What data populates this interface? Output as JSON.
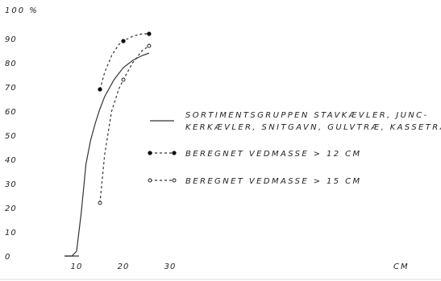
{
  "chart_data": {
    "type": "line",
    "title": "",
    "xlabel": "CM",
    "ylabel": "100 %",
    "xlim": [
      4,
      60
    ],
    "ylim": [
      0,
      100
    ],
    "x_ticks": [
      "10",
      "20",
      "30"
    ],
    "y_ticks": [
      "0",
      "10",
      "20",
      "30",
      "40",
      "50",
      "60",
      "70",
      "80",
      "90"
    ],
    "grid": false,
    "legend_position": "right",
    "series": [
      {
        "style": "solid",
        "name_lines": [
          "SORTIMENTSGRUPPEN STAVKÆVLER, JUNC-",
          "KERKÆVLER, SNITGAVN, GULVTRÆ, KASSETRÆ"
        ],
        "x": [
          7.5,
          9,
          10,
          11,
          12,
          13,
          14,
          15,
          16,
          18,
          20,
          22,
          24,
          25.5
        ],
        "y": [
          0,
          0,
          2,
          18,
          38,
          48,
          55,
          61,
          66,
          73,
          78,
          81,
          83,
          84
        ]
      },
      {
        "style": "dashed",
        "marker": "filled",
        "name": "BEREGNET VEDMASSE > 12 CM",
        "x": [
          15,
          20,
          25.5
        ],
        "y": [
          69,
          89,
          92
        ],
        "curve_x": [
          15,
          16,
          17.5,
          19,
          20,
          22,
          24,
          25.5
        ],
        "curve_y": [
          69,
          76,
          83,
          87.5,
          89,
          91,
          92,
          92
        ]
      },
      {
        "style": "dashed",
        "marker": "open",
        "name": "BEREGNET VEDMASSE > 15 CM",
        "x": [
          15,
          20,
          25.5
        ],
        "y": [
          22,
          73,
          87
        ],
        "curve_x": [
          15,
          16,
          17.5,
          19,
          20,
          22,
          24,
          25.5
        ],
        "curve_y": [
          22,
          42,
          60,
          69,
          73,
          80,
          85,
          87
        ]
      }
    ]
  }
}
